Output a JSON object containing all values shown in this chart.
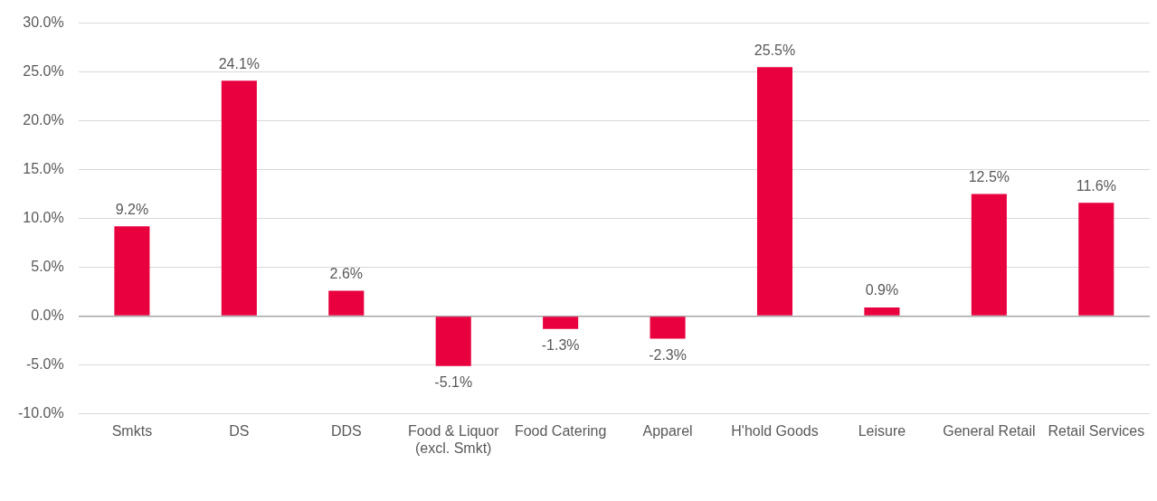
{
  "chart_data": {
    "type": "bar",
    "categories": [
      "Smkts",
      "DS",
      "DDS",
      "Food & Liquor\n(excl. Smkt)",
      "Food Catering",
      "Apparel",
      "H'hold Goods",
      "Leisure",
      "General Retail",
      "Retail Services"
    ],
    "values": [
      9.2,
      24.1,
      2.6,
      -5.1,
      -1.3,
      -2.3,
      25.5,
      0.9,
      12.5,
      11.6
    ],
    "value_labels": [
      "9.2%",
      "24.1%",
      "2.6%",
      "-5.1%",
      "-1.3%",
      "-2.3%",
      "25.5%",
      "0.9%",
      "12.5%",
      "11.6%"
    ],
    "color": "#e8003f",
    "ylim": [
      -10,
      30
    ],
    "yticks": [
      {
        "value": -10,
        "label": "-10.0%"
      },
      {
        "value": -5,
        "label": "-5.0%"
      },
      {
        "value": 0,
        "label": "0.0%"
      },
      {
        "value": 5,
        "label": "5.0%"
      },
      {
        "value": 10,
        "label": "10.0%"
      },
      {
        "value": 15,
        "label": "15.0%"
      },
      {
        "value": 20,
        "label": "20.0%"
      },
      {
        "value": 25,
        "label": "25.0%"
      },
      {
        "value": 30,
        "label": "30.0%"
      }
    ],
    "grid": "y"
  }
}
